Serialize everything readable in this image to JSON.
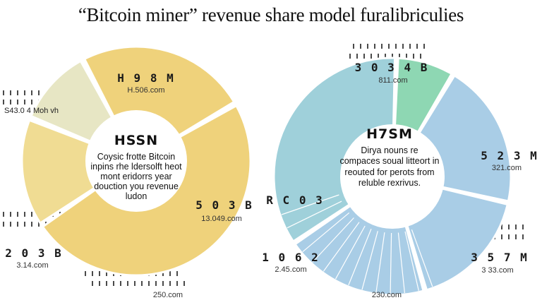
{
  "title": "“Bitcoin miner” revenue share model furalibriculies",
  "chart_data": [
    {
      "type": "pie",
      "colors": [
        "#efd27b",
        "#efd27b",
        "#f0dc93",
        "#e7e6c4"
      ],
      "slices": [
        {
          "value": 22,
          "label": "H 9 8 M",
          "sublabel": "H.506.com"
        },
        {
          "value": 44,
          "label": "5 0 3 B",
          "sublabel": "13.049.com"
        },
        {
          "value": 14,
          "label": "",
          "sublabel": "250.com"
        },
        {
          "value": 10,
          "label": "2 0 3 B",
          "sublabel": "3.14.com"
        }
      ],
      "side_labels": [
        "S43.0 4 Moh vh"
      ],
      "center": {
        "headline": "HSSN",
        "lines": [
          "Coysic frotte Bitcoin",
          "inpins rhe ldersolft heot",
          "mont eridorrs year",
          "douction you revenue",
          "ludon"
        ]
      }
    },
    {
      "type": "pie",
      "colors": [
        "#8ed7b3",
        "#a9cde6",
        "#a9cde6",
        "#a9cde6",
        "#9fd0da"
      ],
      "slices": [
        {
          "value": 8,
          "label": "3 0 3 4 B",
          "sublabel": "811.com"
        },
        {
          "value": 20,
          "label": "5 2 3 M",
          "sublabel": "321.com"
        },
        {
          "value": 17,
          "label": "3 5 7 M",
          "sublabel": "3 33.com"
        },
        {
          "value": 20,
          "label": "",
          "sublabel": "230.com"
        },
        {
          "value": 35,
          "label": "1 0 6 2",
          "sublabel": "2.45.com"
        }
      ],
      "side_labels": [
        "R C 0 3"
      ],
      "center": {
        "headline": "H7SM",
        "lines": [
          "Dirya nouns re",
          "compaces soual litteort in",
          "reouted for perots from",
          "reluble rexrivus."
        ]
      }
    }
  ]
}
